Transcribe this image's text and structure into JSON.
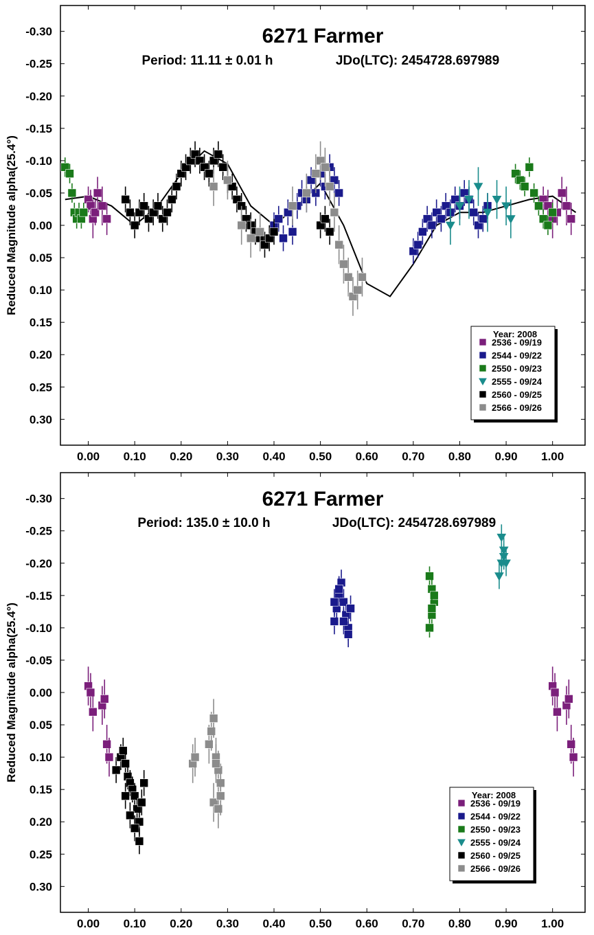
{
  "chart_data": [
    {
      "type": "scatter",
      "title": "6271 Farmer",
      "period_label": "Period: 11.11 ± 0.01 h",
      "jdo_label": "JDo(LTC): 2454728.697989",
      "xlabel": "",
      "ylabel": "Reduced Magnitude alpha(25.4°)",
      "xlim": [
        -0.06,
        1.07
      ],
      "ylim": [
        0.34,
        -0.34
      ],
      "y_inverted": true,
      "xticks": [
        "0.00",
        "0.10",
        "0.20",
        "0.30",
        "0.40",
        "0.50",
        "0.60",
        "0.70",
        "0.80",
        "0.90",
        "1.00"
      ],
      "yticks": [
        "-0.30",
        "-0.25",
        "-0.20",
        "-0.15",
        "-0.10",
        "-0.05",
        "0.00",
        "0.05",
        "0.10",
        "0.15",
        "0.20",
        "0.25",
        "0.30"
      ],
      "legend": {
        "title": "Year: 2008",
        "position": "bottom-right",
        "entries": [
          "2536 - 09/19",
          "2544 - 09/22",
          "2550 - 09/23",
          "2555 - 09/24",
          "2560 - 09/25",
          "2566 - 09/26"
        ]
      },
      "fit_curve": {
        "x": [
          -0.05,
          0.0,
          0.05,
          0.1,
          0.15,
          0.2,
          0.25,
          0.3,
          0.35,
          0.4,
          0.45,
          0.5,
          0.55,
          0.6,
          0.65,
          0.7,
          0.75,
          0.8,
          0.85,
          0.9,
          0.95,
          1.0,
          1.05
        ],
        "y": [
          -0.04,
          -0.045,
          -0.03,
          0.0,
          -0.03,
          -0.08,
          -0.115,
          -0.095,
          -0.03,
          0.0,
          -0.03,
          -0.065,
          0.0,
          0.09,
          0.11,
          0.06,
          0.0,
          -0.02,
          -0.02,
          -0.03,
          -0.04,
          -0.045,
          -0.02
        ]
      },
      "series": [
        {
          "name": "2536 - 09/19",
          "color": "#7b1f7b",
          "marker": "square",
          "x": [
            0.0,
            0.005,
            0.01,
            0.015,
            0.02,
            0.03,
            0.04,
            0.98,
            0.99,
            1.0,
            1.01,
            1.02,
            1.03,
            1.04
          ],
          "y": [
            -0.04,
            -0.03,
            -0.01,
            -0.02,
            -0.05,
            -0.03,
            -0.01,
            -0.04,
            -0.03,
            -0.01,
            -0.02,
            -0.05,
            -0.03,
            -0.01
          ],
          "err": [
            0.02,
            0.025,
            0.03,
            0.02,
            0.025,
            0.03,
            0.025,
            0.02,
            0.025,
            0.03,
            0.02,
            0.025,
            0.03,
            0.025
          ]
        },
        {
          "name": "2544 - 09/22",
          "color": "#1a1a8c",
          "marker": "square",
          "x": [
            0.4,
            0.41,
            0.42,
            0.43,
            0.44,
            0.45,
            0.46,
            0.47,
            0.48,
            0.49,
            0.5,
            0.51,
            0.52,
            0.53,
            0.54,
            0.7,
            0.71,
            0.72,
            0.73,
            0.74,
            0.75,
            0.76,
            0.77,
            0.78,
            0.79,
            0.8,
            0.81,
            0.82,
            0.83,
            0.84,
            0.85,
            0.86
          ],
          "y": [
            0.0,
            -0.01,
            0.02,
            -0.02,
            0.01,
            -0.03,
            -0.05,
            -0.04,
            -0.07,
            -0.05,
            -0.08,
            -0.06,
            -0.09,
            -0.07,
            -0.05,
            0.04,
            0.03,
            0.01,
            -0.01,
            0.0,
            -0.02,
            -0.01,
            -0.03,
            -0.02,
            -0.04,
            -0.03,
            -0.05,
            -0.04,
            -0.02,
            0.0,
            -0.01,
            -0.03
          ],
          "err": [
            0.02,
            0.02,
            0.02,
            0.02,
            0.02,
            0.02,
            0.02,
            0.02,
            0.02,
            0.02,
            0.02,
            0.02,
            0.02,
            0.02,
            0.02,
            0.02,
            0.02,
            0.02,
            0.02,
            0.02,
            0.02,
            0.02,
            0.02,
            0.02,
            0.02,
            0.02,
            0.02,
            0.02,
            0.02,
            0.02,
            0.02,
            0.02
          ]
        },
        {
          "name": "2550 - 09/23",
          "color": "#1a7a1a",
          "marker": "square",
          "x": [
            -0.05,
            -0.04,
            -0.035,
            -0.03,
            -0.025,
            -0.02,
            -0.015,
            -0.01,
            0.92,
            0.93,
            0.94,
            0.95,
            0.96,
            0.97,
            0.98,
            0.99,
            1.0
          ],
          "y": [
            -0.09,
            -0.08,
            -0.05,
            -0.02,
            -0.01,
            -0.02,
            -0.01,
            -0.02,
            -0.08,
            -0.07,
            -0.06,
            -0.09,
            -0.05,
            -0.03,
            -0.01,
            0.0,
            -0.02
          ],
          "err": [
            0.015,
            0.015,
            0.015,
            0.015,
            0.015,
            0.015,
            0.015,
            0.015,
            0.015,
            0.015,
            0.015,
            0.015,
            0.015,
            0.015,
            0.015,
            0.015,
            0.015
          ]
        },
        {
          "name": "2555 - 09/24",
          "color": "#1a8c8c",
          "marker": "triangle",
          "x": [
            0.78,
            0.8,
            0.82,
            0.84,
            0.86,
            0.88,
            0.9,
            0.91
          ],
          "y": [
            0.0,
            -0.03,
            -0.04,
            -0.06,
            -0.02,
            -0.04,
            -0.03,
            -0.01
          ],
          "err": [
            0.03,
            0.03,
            0.03,
            0.03,
            0.03,
            0.03,
            0.03,
            0.03
          ]
        },
        {
          "name": "2560 - 09/25",
          "color": "#000000",
          "marker": "square",
          "x": [
            0.08,
            0.09,
            0.1,
            0.11,
            0.12,
            0.13,
            0.14,
            0.15,
            0.16,
            0.17,
            0.18,
            0.19,
            0.2,
            0.21,
            0.22,
            0.23,
            0.24,
            0.25,
            0.26,
            0.27,
            0.28,
            0.29,
            0.3,
            0.31,
            0.32,
            0.33,
            0.34,
            0.35,
            0.36,
            0.37,
            0.38,
            0.39,
            0.4,
            0.5,
            0.51,
            0.52
          ],
          "y": [
            -0.04,
            -0.02,
            0.0,
            -0.02,
            -0.03,
            -0.01,
            -0.02,
            -0.03,
            -0.01,
            -0.02,
            -0.04,
            -0.06,
            -0.08,
            -0.09,
            -0.1,
            -0.11,
            -0.1,
            -0.09,
            -0.08,
            -0.1,
            -0.11,
            -0.09,
            -0.07,
            -0.06,
            -0.04,
            -0.03,
            -0.01,
            0.0,
            0.01,
            0.02,
            0.03,
            0.02,
            0.01,
            0.0,
            -0.01,
            0.01
          ],
          "err": [
            0.02,
            0.02,
            0.02,
            0.02,
            0.02,
            0.02,
            0.02,
            0.02,
            0.02,
            0.02,
            0.02,
            0.02,
            0.02,
            0.02,
            0.02,
            0.02,
            0.02,
            0.02,
            0.02,
            0.02,
            0.02,
            0.02,
            0.02,
            0.02,
            0.02,
            0.02,
            0.02,
            0.02,
            0.02,
            0.02,
            0.02,
            0.02,
            0.02,
            0.02,
            0.02,
            0.02
          ]
        },
        {
          "name": "2566 - 09/26",
          "color": "#8c8c8c",
          "marker": "square",
          "x": [
            0.27,
            0.3,
            0.33,
            0.35,
            0.37,
            0.44,
            0.47,
            0.49,
            0.5,
            0.51,
            0.52,
            0.53,
            0.54,
            0.55,
            0.56,
            0.57,
            0.58,
            0.59
          ],
          "y": [
            -0.06,
            -0.07,
            0.0,
            0.02,
            0.01,
            -0.03,
            -0.05,
            -0.08,
            -0.1,
            -0.09,
            -0.06,
            -0.02,
            0.03,
            0.06,
            0.08,
            0.11,
            0.1,
            0.08
          ],
          "err": [
            0.03,
            0.03,
            0.03,
            0.03,
            0.03,
            0.03,
            0.03,
            0.03,
            0.03,
            0.03,
            0.03,
            0.03,
            0.03,
            0.03,
            0.03,
            0.03,
            0.03,
            0.03
          ]
        }
      ]
    },
    {
      "type": "scatter",
      "title": "6271 Farmer",
      "period_label": "Period: 135.0 ± 10.0 h",
      "jdo_label": "JDo(LTC): 2454728.697989",
      "xlabel": "",
      "ylabel": "Reduced Magnitude alpha(25.4°)",
      "xlim": [
        -0.06,
        1.07
      ],
      "ylim": [
        0.34,
        -0.34
      ],
      "y_inverted": true,
      "xticks": [
        "0.00",
        "0.10",
        "0.20",
        "0.30",
        "0.40",
        "0.50",
        "0.60",
        "0.70",
        "0.80",
        "0.90",
        "1.00"
      ],
      "yticks": [
        "-0.30",
        "-0.25",
        "-0.20",
        "-0.15",
        "-0.10",
        "-0.05",
        "0.00",
        "0.05",
        "0.10",
        "0.15",
        "0.20",
        "0.25",
        "0.30"
      ],
      "legend": {
        "title": "Year: 2008",
        "position": "bottom-right",
        "entries": [
          "2536 - 09/19",
          "2544 - 09/22",
          "2550 - 09/23",
          "2555 - 09/24",
          "2560 - 09/25",
          "2566 - 09/26"
        ]
      },
      "series": [
        {
          "name": "2536 - 09/19",
          "color": "#7b1f7b",
          "marker": "square",
          "x": [
            0.0,
            0.005,
            0.01,
            0.03,
            0.035,
            0.04,
            0.045,
            1.0,
            1.005,
            1.01,
            1.03,
            1.035,
            1.04,
            1.045
          ],
          "y": [
            -0.01,
            0.0,
            0.03,
            0.02,
            0.01,
            0.08,
            0.1,
            -0.01,
            0.0,
            0.03,
            0.02,
            0.01,
            0.08,
            0.1
          ],
          "err": [
            0.03,
            0.03,
            0.03,
            0.03,
            0.03,
            0.03,
            0.03,
            0.03,
            0.03,
            0.03,
            0.03,
            0.03,
            0.03,
            0.03
          ]
        },
        {
          "name": "2544 - 09/22",
          "color": "#1a1a8c",
          "marker": "square",
          "x": [
            0.53,
            0.535,
            0.54,
            0.545,
            0.55,
            0.555,
            0.56,
            0.565,
            0.54,
            0.55,
            0.53,
            0.56
          ],
          "y": [
            -0.11,
            -0.13,
            -0.15,
            -0.17,
            -0.14,
            -0.12,
            -0.1,
            -0.13,
            -0.16,
            -0.11,
            -0.14,
            -0.09
          ],
          "err": [
            0.02,
            0.02,
            0.02,
            0.02,
            0.02,
            0.02,
            0.02,
            0.02,
            0.02,
            0.02,
            0.02,
            0.02
          ]
        },
        {
          "name": "2550 - 09/23",
          "color": "#1a7a1a",
          "marker": "square",
          "x": [
            0.735,
            0.74,
            0.745,
            0.74,
            0.735,
            0.745,
            0.74
          ],
          "y": [
            -0.18,
            -0.16,
            -0.14,
            -0.12,
            -0.1,
            -0.15,
            -0.13
          ],
          "err": [
            0.015,
            0.015,
            0.015,
            0.015,
            0.015,
            0.015,
            0.015
          ]
        },
        {
          "name": "2555 - 09/24",
          "color": "#1a8c8c",
          "marker": "triangle",
          "x": [
            0.885,
            0.89,
            0.895,
            0.9,
            0.89,
            0.895
          ],
          "y": [
            -0.18,
            -0.2,
            -0.22,
            -0.2,
            -0.24,
            -0.21
          ],
          "err": [
            0.02,
            0.02,
            0.02,
            0.02,
            0.02,
            0.02
          ]
        },
        {
          "name": "2560 - 09/25",
          "color": "#000000",
          "marker": "square",
          "x": [
            0.06,
            0.07,
            0.075,
            0.08,
            0.085,
            0.09,
            0.095,
            0.1,
            0.105,
            0.11,
            0.115,
            0.12,
            0.09,
            0.1,
            0.08,
            0.11
          ],
          "y": [
            0.12,
            0.1,
            0.09,
            0.11,
            0.13,
            0.14,
            0.15,
            0.16,
            0.18,
            0.2,
            0.17,
            0.14,
            0.19,
            0.21,
            0.16,
            0.23
          ],
          "err": [
            0.02,
            0.02,
            0.02,
            0.02,
            0.02,
            0.02,
            0.02,
            0.02,
            0.02,
            0.02,
            0.02,
            0.02,
            0.02,
            0.02,
            0.02,
            0.02
          ]
        },
        {
          "name": "2566 - 09/26",
          "color": "#8c8c8c",
          "marker": "square",
          "x": [
            0.225,
            0.23,
            0.26,
            0.265,
            0.27,
            0.275,
            0.28,
            0.285,
            0.27,
            0.28,
            0.275,
            0.285
          ],
          "y": [
            0.11,
            0.1,
            0.08,
            0.06,
            0.04,
            0.1,
            0.12,
            0.14,
            0.17,
            0.18,
            0.11,
            0.16
          ],
          "err": [
            0.03,
            0.03,
            0.03,
            0.03,
            0.03,
            0.03,
            0.03,
            0.03,
            0.03,
            0.03,
            0.03,
            0.03
          ]
        }
      ]
    }
  ]
}
